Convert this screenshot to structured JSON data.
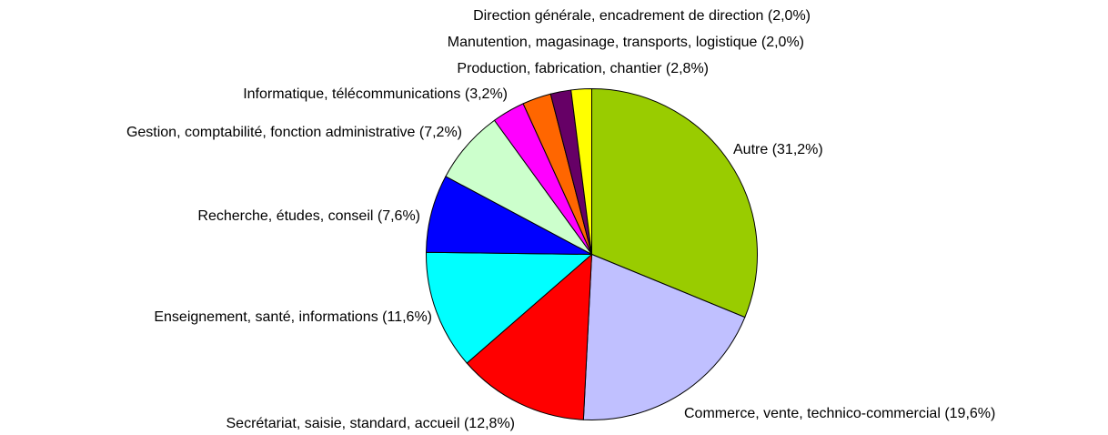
{
  "chart_data": {
    "type": "pie",
    "categories": [
      "Autre",
      "Commerce, vente, technico-commercial",
      "Secrétariat, saisie, standard, accueil",
      "Enseignement, santé, informations",
      "Recherche, études, conseil",
      "Gestion, comptabilité, fonction administrative",
      "Informatique, télécommunications",
      "Production, fabrication, chantier",
      "Manutention, magasinage, transports, logistique",
      "Direction générale, encadrement de direction"
    ],
    "values": [
      31.2,
      19.6,
      12.8,
      11.6,
      7.6,
      7.2,
      3.2,
      2.8,
      2.0,
      2.0
    ],
    "value_labels": [
      "(31,2%)",
      "(19,6%)",
      "(12,8%)",
      "(11,6%)",
      "(7,6%)",
      "(7,2%)",
      "(3,2%)",
      "(2,8%)",
      "(2,0%)",
      "(2,0%)"
    ],
    "colors": [
      "#99cc00",
      "#c0c0ff",
      "#ff0000",
      "#00ffff",
      "#0000ff",
      "#ccffcc",
      "#ff00ff",
      "#ff6600",
      "#660066",
      "#ffff00"
    ]
  }
}
